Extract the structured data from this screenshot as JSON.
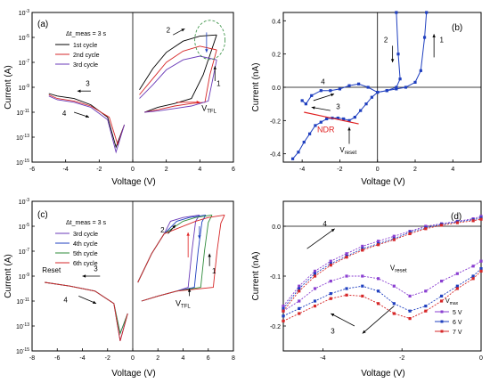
{
  "chart_data": [
    {
      "panel": "(a)",
      "type": "line",
      "xlabel": "Voltage (V)",
      "ylabel": "Current (A)",
      "xlim": [
        -6,
        6
      ],
      "ylim_log10": [
        -15,
        -3
      ],
      "x_ticks": [
        "-6",
        "-4",
        "-2",
        "0",
        "2",
        "4",
        "6"
      ],
      "y_ticks": [
        "10^-15",
        "10^-13",
        "10^-11",
        "10^-9",
        "10^-7",
        "10^-5",
        "10^-3"
      ],
      "legend_title": "Δt_meas = 3 s",
      "annotations": {
        "arrows": [
          "1",
          "2",
          "3",
          "4"
        ],
        "vtfl": "V_TFL"
      },
      "series": [
        {
          "name": "1st cycle",
          "color": "#000000",
          "up_sweep": [
            [
              0.7,
              -11
            ],
            [
              1.5,
              -10.6
            ],
            [
              2.5,
              -10.3
            ],
            [
              3.5,
              -9.9
            ],
            [
              4.2,
              -8
            ],
            [
              5,
              -4.8
            ]
          ],
          "down_sweep": [
            [
              5,
              -4.8
            ],
            [
              4,
              -4.9
            ],
            [
              3,
              -5.3
            ],
            [
              2,
              -6.2
            ],
            [
              1.2,
              -7.5
            ],
            [
              0.4,
              -9.2
            ]
          ],
          "neg_sweep": [
            [
              -0.5,
              -12
            ],
            [
              -1,
              -13.8
            ],
            [
              -1.5,
              -11.4
            ],
            [
              -2.5,
              -10.4
            ],
            [
              -3.5,
              -9.9
            ],
            [
              -4.5,
              -9.7
            ],
            [
              -5,
              -9.5
            ]
          ]
        },
        {
          "name": "2nd cycle",
          "color": "#d62728",
          "up_sweep": [
            [
              0.7,
              -11
            ],
            [
              1.5,
              -10.8
            ],
            [
              2.5,
              -10.5
            ],
            [
              3.5,
              -10.3
            ],
            [
              4.3,
              -10.2
            ],
            [
              4.6,
              -8
            ],
            [
              5,
              -6
            ]
          ],
          "down_sweep": [
            [
              5,
              -6
            ],
            [
              4,
              -5.7
            ],
            [
              3,
              -6.1
            ],
            [
              2,
              -7
            ],
            [
              1.2,
              -8.3
            ],
            [
              0.4,
              -9.6
            ]
          ],
          "neg_sweep": [
            [
              -0.5,
              -12
            ],
            [
              -0.9,
              -13.6
            ],
            [
              -1.4,
              -11.4
            ],
            [
              -2.5,
              -10.5
            ],
            [
              -3.5,
              -10.1
            ],
            [
              -4.5,
              -9.9
            ],
            [
              -5,
              -9.6
            ]
          ]
        },
        {
          "name": "3rd cycle",
          "color": "#6a3ab8",
          "up_sweep": [
            [
              0.7,
              -11
            ],
            [
              1.5,
              -10.9
            ],
            [
              2.5,
              -10.7
            ],
            [
              3.5,
              -10.5
            ],
            [
              4.5,
              -10.1
            ],
            [
              5,
              -6.8
            ]
          ],
          "down_sweep": [
            [
              5,
              -6.8
            ],
            [
              4,
              -6.5
            ],
            [
              3,
              -6.8
            ],
            [
              2,
              -7.6
            ],
            [
              1.2,
              -8.8
            ],
            [
              0.4,
              -9.9
            ]
          ],
          "neg_sweep": [
            [
              -0.5,
              -12
            ],
            [
              -1,
              -14.2
            ],
            [
              -1.5,
              -11.6
            ],
            [
              -2.5,
              -10.6
            ],
            [
              -3.5,
              -10.2
            ],
            [
              -4.5,
              -10
            ],
            [
              -5,
              -9.7
            ]
          ]
        }
      ]
    },
    {
      "panel": "(b)",
      "type": "line",
      "xlabel": "Voltage (V)",
      "ylabel": "Current (nA)",
      "xlim": [
        -5,
        5.5
      ],
      "ylim": [
        -0.45,
        0.45
      ],
      "x_ticks": [
        "-4",
        "-2",
        "0",
        "2",
        "4"
      ],
      "y_ticks": [
        "-0.4",
        "-0.2",
        "0.0",
        "0.2",
        "0.4"
      ],
      "annotations": {
        "arrows": [
          "1",
          "2",
          "3",
          "4"
        ],
        "ndr": "NDR",
        "vreset": "V_reset"
      },
      "series": [
        {
          "name": "",
          "color": "#1f3fbf",
          "points": [
            [
              -4.5,
              -0.43
            ],
            [
              -4.2,
              -0.39
            ],
            [
              -3.9,
              -0.33
            ],
            [
              -3.6,
              -0.28
            ],
            [
              -3.3,
              -0.23
            ],
            [
              -3,
              -0.21
            ],
            [
              -2.7,
              -0.19
            ],
            [
              -2.4,
              -0.185
            ],
            [
              -2.1,
              -0.185
            ],
            [
              -1.8,
              -0.19
            ],
            [
              -1.5,
              -0.2
            ],
            [
              -1.2,
              -0.18
            ],
            [
              -0.9,
              -0.14
            ],
            [
              -0.6,
              -0.1
            ],
            [
              -0.3,
              -0.06
            ],
            [
              0,
              -0.03
            ],
            [
              0.5,
              -0.02
            ],
            [
              1,
              -0.01
            ],
            [
              1.5,
              0.0
            ],
            [
              2,
              0.03
            ],
            [
              2.3,
              0.1
            ],
            [
              2.5,
              0.3
            ],
            [
              2.6,
              0.45
            ]
          ]
        },
        {
          "name": "",
          "color": "#1f3fbf",
          "points": [
            [
              1,
              0.45
            ],
            [
              1.1,
              0.2
            ],
            [
              1.2,
              0.05
            ],
            [
              1,
              0.0
            ],
            [
              0.5,
              -0.02
            ],
            [
              0,
              -0.03
            ],
            [
              -0.5,
              0.0
            ],
            [
              -1,
              0.02
            ],
            [
              -1.5,
              0.01
            ],
            [
              -2,
              -0.01
            ],
            [
              -2.5,
              -0.02
            ],
            [
              -3,
              -0.02
            ],
            [
              -3.5,
              -0.05
            ],
            [
              -3.8,
              -0.1
            ],
            [
              -4,
              -0.08
            ]
          ]
        }
      ]
    },
    {
      "panel": "(c)",
      "type": "line",
      "xlabel": "Voltage (V)",
      "ylabel": "Current (A)",
      "xlim": [
        -8,
        8
      ],
      "ylim_log10": [
        -15,
        -3
      ],
      "x_ticks": [
        "-8",
        "-6",
        "-4",
        "-2",
        "0",
        "2",
        "4",
        "6",
        "8"
      ],
      "y_ticks": [
        "10^-15",
        "10^-13",
        "10^-11",
        "10^-9",
        "10^-7",
        "10^-5",
        "10^-3"
      ],
      "legend_title": "Δt_meas = 3 s",
      "annotations": {
        "arrows": [
          "1",
          "2",
          "3",
          "4"
        ],
        "reset": "Reset",
        "vtfl": "V_TFL"
      },
      "series": [
        {
          "name": "3rd cycle",
          "color": "#6a3ab8",
          "vmax": 5
        },
        {
          "name": "4th cycle",
          "color": "#1f3fbf",
          "vmax": 5.5
        },
        {
          "name": "5th cycle",
          "color": "#2e8b3a",
          "vmax": 6
        },
        {
          "name": "6th cycle",
          "color": "#d62728",
          "vmax": 7
        }
      ]
    },
    {
      "panel": "(d)",
      "type": "line",
      "xlabel": "Voltage (V)",
      "ylabel": "Current (nA)",
      "xlim": [
        -5,
        0
      ],
      "ylim": [
        -0.25,
        0.05
      ],
      "x_ticks": [
        "-4",
        "-2",
        "0"
      ],
      "y_ticks": [
        "-0.2",
        "-0.1",
        "0.0"
      ],
      "annotations": {
        "arrows": [
          "3",
          "4"
        ],
        "vreset": "V_reset",
        "legend_title": "V_max"
      },
      "series": [
        {
          "name": "5 V",
          "color": "#8a3fd1",
          "x": [
            -5,
            -4.6,
            -4.2,
            -3.8,
            -3.4,
            -3,
            -2.6,
            -2.2,
            -1.8,
            -1.4,
            -1,
            -0.6,
            -0.2,
            0
          ],
          "y": [
            -0.17,
            -0.15,
            -0.125,
            -0.11,
            -0.1,
            -0.1,
            -0.105,
            -0.12,
            -0.14,
            -0.13,
            -0.11,
            -0.095,
            -0.08,
            -0.07
          ],
          "y_return": [
            -0.16,
            -0.12,
            -0.09,
            -0.07,
            -0.055,
            -0.04,
            -0.03,
            -0.02,
            -0.01,
            0,
            0.005,
            0.01,
            0.015,
            0.02
          ]
        },
        {
          "name": "6 V",
          "color": "#1f3fbf",
          "x": [
            -5,
            -4.6,
            -4.2,
            -3.8,
            -3.4,
            -3,
            -2.6,
            -2.2,
            -1.8,
            -1.4,
            -1,
            -0.6,
            -0.2,
            0
          ],
          "y": [
            -0.18,
            -0.165,
            -0.15,
            -0.135,
            -0.125,
            -0.12,
            -0.13,
            -0.155,
            -0.17,
            -0.16,
            -0.14,
            -0.12,
            -0.1,
            -0.085
          ],
          "y_return": [
            -0.165,
            -0.125,
            -0.095,
            -0.075,
            -0.06,
            -0.045,
            -0.035,
            -0.025,
            -0.012,
            -0.003,
            0.004,
            0.009,
            0.013,
            0.017
          ]
        },
        {
          "name": "7 V",
          "color": "#d62728",
          "x": [
            -5,
            -4.6,
            -4.2,
            -3.8,
            -3.4,
            -3,
            -2.6,
            -2.2,
            -1.8,
            -1.4,
            -1,
            -0.6,
            -0.2,
            0
          ],
          "y": [
            -0.19,
            -0.175,
            -0.16,
            -0.145,
            -0.138,
            -0.14,
            -0.155,
            -0.175,
            -0.185,
            -0.17,
            -0.15,
            -0.125,
            -0.105,
            -0.09
          ],
          "y_return": [
            -0.17,
            -0.13,
            -0.1,
            -0.078,
            -0.062,
            -0.048,
            -0.037,
            -0.027,
            -0.015,
            -0.005,
            0.002,
            0.007,
            0.011,
            0.014
          ]
        }
      ]
    }
  ]
}
